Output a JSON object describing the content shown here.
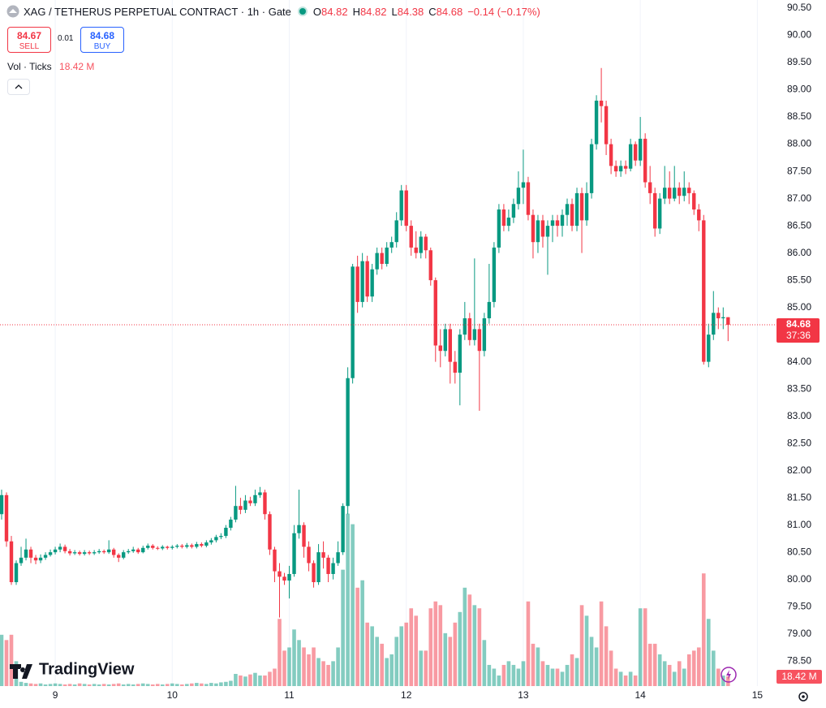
{
  "chart_data": {
    "type": "candlestick",
    "title": "XAG / TETHERUS PERPETUAL CONTRACT · 1h · Gate",
    "ohlc_labels": [
      "O",
      "H",
      "L",
      "C"
    ],
    "change": "−0.14 (−0.17%)",
    "sell_price": 84.67,
    "sell_label": "SELL",
    "spread": 0.01,
    "buy_price": 84.68,
    "buy_label": "BUY",
    "volume_title": "Vol · Ticks",
    "volume_last_label": "18.42 M",
    "countdown": "37:36",
    "brand": "TradingView",
    "up_color": "#089981",
    "down_color": "#f23645",
    "volume_up_color": "rgba(8,153,129,0.5)",
    "volume_down_color": "rgba(242,54,69,0.5)",
    "grid": true,
    "xlim": [
      204.67,
      363.6
    ],
    "xticks": [
      {
        "value": 216,
        "label": "9"
      },
      {
        "value": 240,
        "label": "10"
      },
      {
        "value": 264,
        "label": "11"
      },
      {
        "value": 288,
        "label": "12"
      },
      {
        "value": 312,
        "label": "13"
      },
      {
        "value": 336,
        "label": "14"
      },
      {
        "value": 360,
        "label": "15"
      }
    ],
    "ylim": [
      78.04,
      90.65
    ],
    "yticks": [
      {
        "value": 78.5,
        "label": "78.50"
      },
      {
        "value": 79,
        "label": "79.00"
      },
      {
        "value": 79.5,
        "label": "79.50"
      },
      {
        "value": 80,
        "label": "80.00"
      },
      {
        "value": 80.5,
        "label": "80.50"
      },
      {
        "value": 81,
        "label": "81.00"
      },
      {
        "value": 81.5,
        "label": "81.50"
      },
      {
        "value": 82,
        "label": "82.00"
      },
      {
        "value": 82.5,
        "label": "82.50"
      },
      {
        "value": 83,
        "label": "83.00"
      },
      {
        "value": 83.5,
        "label": "83.50"
      },
      {
        "value": 84,
        "label": "84.00"
      },
      {
        "value": 84.5,
        "label": "84.50"
      },
      {
        "value": 85,
        "label": "85.00"
      },
      {
        "value": 85.5,
        "label": "85.50"
      },
      {
        "value": 86,
        "label": "86.00"
      },
      {
        "value": 86.5,
        "label": "86.50"
      },
      {
        "value": 87,
        "label": "87.00"
      },
      {
        "value": 87.5,
        "label": "87.50"
      },
      {
        "value": 88,
        "label": "88.00"
      },
      {
        "value": 88.5,
        "label": "88.50"
      },
      {
        "value": 89,
        "label": "89.00"
      },
      {
        "value": 89.5,
        "label": "89.50"
      },
      {
        "value": 90,
        "label": "90.00"
      },
      {
        "value": 90.5,
        "label": "90.50"
      }
    ],
    "volume_lim": [
      0,
      660
    ],
    "x": [
      205,
      206,
      207,
      208,
      209,
      210,
      211,
      212,
      213,
      214,
      215,
      216,
      217,
      218,
      219,
      220,
      221,
      222,
      223,
      224,
      225,
      226,
      227,
      228,
      229,
      230,
      231,
      232,
      233,
      234,
      235,
      236,
      237,
      238,
      239,
      240,
      241,
      242,
      243,
      244,
      245,
      246,
      247,
      248,
      249,
      250,
      251,
      252,
      253,
      254,
      255,
      256,
      257,
      258,
      259,
      260,
      261,
      262,
      263,
      264,
      265,
      266,
      267,
      268,
      269,
      270,
      271,
      272,
      273,
      274,
      275,
      276,
      277,
      278,
      279,
      280,
      281,
      282,
      283,
      284,
      285,
      286,
      287,
      288,
      289,
      290,
      291,
      292,
      293,
      294,
      295,
      296,
      297,
      298,
      299,
      300,
      301,
      302,
      303,
      304,
      305,
      306,
      307,
      308,
      309,
      310,
      311,
      312,
      313,
      314,
      315,
      316,
      317,
      318,
      319,
      320,
      321,
      322,
      323,
      324,
      325,
      326,
      327,
      328,
      329,
      330,
      331,
      332,
      333,
      334,
      335,
      336,
      337,
      338,
      339,
      340,
      341,
      342,
      343,
      344,
      345,
      346,
      347,
      348,
      349,
      350,
      351,
      352,
      353,
      354
    ],
    "open": [
      81.2,
      81.55,
      80.7,
      79.95,
      80.3,
      80.4,
      80.55,
      80.4,
      80.35,
      80.4,
      80.45,
      80.5,
      80.55,
      80.6,
      80.52,
      80.48,
      80.5,
      80.47,
      80.5,
      80.48,
      80.5,
      80.52,
      80.5,
      80.55,
      80.45,
      80.4,
      80.5,
      80.52,
      80.55,
      80.5,
      80.58,
      80.62,
      80.58,
      80.57,
      80.6,
      80.58,
      80.6,
      80.62,
      80.6,
      80.63,
      80.6,
      80.65,
      80.62,
      80.68,
      80.72,
      80.78,
      80.8,
      80.95,
      81.1,
      81.35,
      81.28,
      81.45,
      81.4,
      81.55,
      81.6,
      81.2,
      80.55,
      80.15,
      80.05,
      79.98,
      80.1,
      80.85,
      81.0,
      80.6,
      80.3,
      79.95,
      80.5,
      80.4,
      80.1,
      80.3,
      80.5,
      81.35,
      83.7,
      85.75,
      85.1,
      85.85,
      85.2,
      85.7,
      86.0,
      85.8,
      86.1,
      86.2,
      86.6,
      87.15,
      86.5,
      86.1,
      86.0,
      86.3,
      86.05,
      85.5,
      84.3,
      84.2,
      84.6,
      84.0,
      83.8,
      84.5,
      84.8,
      84.4,
      84.6,
      84.2,
      84.8,
      85.1,
      86.1,
      86.8,
      86.5,
      86.65,
      86.9,
      87.2,
      87.3,
      86.7,
      86.2,
      86.6,
      86.3,
      86.5,
      86.6,
      86.5,
      86.7,
      86.9,
      86.5,
      87.1,
      86.6,
      87.1,
      88.0,
      88.8,
      88.7,
      88.0,
      87.6,
      87.5,
      87.6,
      87.55,
      88.0,
      87.7,
      88.1,
      87.3,
      87.1,
      86.45,
      87.0,
      87.2,
      87.0,
      87.2,
      87.05,
      87.2,
      87.1,
      86.8,
      86.6,
      84.0,
      84.5,
      84.9,
      84.8,
      84.82
    ],
    "high": [
      81.65,
      81.6,
      80.8,
      80.35,
      80.6,
      80.75,
      80.6,
      80.45,
      80.46,
      80.5,
      80.55,
      80.6,
      80.66,
      80.64,
      80.56,
      80.54,
      80.53,
      80.54,
      80.53,
      80.54,
      80.56,
      80.55,
      80.72,
      80.58,
      80.48,
      80.54,
      80.56,
      80.6,
      80.58,
      80.62,
      80.66,
      80.65,
      80.61,
      80.63,
      80.62,
      80.63,
      80.65,
      80.65,
      80.67,
      80.66,
      80.69,
      80.68,
      80.72,
      80.76,
      80.82,
      80.85,
      81.0,
      81.15,
      81.72,
      81.5,
      81.55,
      81.52,
      81.65,
      81.7,
      81.65,
      81.25,
      80.6,
      80.3,
      80.12,
      80.25,
      81.0,
      81.65,
      81.05,
      80.7,
      80.35,
      80.65,
      80.7,
      80.45,
      80.4,
      80.7,
      81.4,
      83.9,
      85.8,
      85.95,
      86.0,
      85.95,
      85.8,
      86.1,
      86.1,
      86.2,
      86.3,
      86.75,
      87.25,
      87.25,
      86.6,
      86.4,
      86.4,
      86.35,
      86.1,
      85.55,
      84.6,
      84.7,
      84.7,
      84.2,
      84.6,
      85.1,
      84.9,
      85.9,
      84.7,
      84.9,
      85.8,
      86.2,
      86.9,
      86.9,
      86.8,
      87.0,
      87.5,
      87.9,
      87.4,
      86.8,
      86.7,
      86.7,
      86.6,
      86.7,
      86.7,
      86.8,
      87.0,
      87.0,
      87.2,
      87.2,
      87.3,
      88.1,
      88.9,
      89.4,
      88.8,
      88.1,
      87.7,
      87.7,
      87.7,
      88.1,
      88.05,
      88.5,
      88.2,
      87.6,
      87.2,
      87.1,
      87.6,
      87.5,
      87.6,
      87.3,
      87.5,
      87.3,
      87.15,
      86.9,
      86.7,
      84.7,
      85.3,
      85.0,
      85.0,
      84.82
    ],
    "low": [
      81.1,
      80.6,
      79.9,
      79.9,
      80.25,
      80.35,
      80.3,
      80.28,
      80.3,
      80.36,
      80.42,
      80.46,
      80.5,
      80.48,
      80.44,
      80.45,
      80.44,
      80.44,
      80.45,
      80.45,
      80.47,
      80.47,
      80.47,
      80.4,
      80.32,
      80.37,
      80.47,
      80.49,
      80.47,
      80.48,
      80.55,
      80.55,
      80.54,
      80.54,
      80.55,
      80.55,
      80.57,
      80.57,
      80.57,
      80.57,
      80.57,
      80.59,
      80.59,
      80.64,
      80.68,
      80.74,
      80.76,
      80.9,
      81.05,
      81.2,
      81.22,
      81.35,
      81.35,
      81.5,
      81.1,
      80.45,
      79.95,
      79.3,
      79.9,
      79.65,
      80.05,
      80.75,
      80.4,
      80.15,
      79.85,
      79.9,
      80.2,
      79.95,
      80.0,
      80.25,
      80.45,
      81.2,
      83.6,
      84.9,
      85.0,
      85.1,
      85.1,
      85.6,
      85.7,
      85.75,
      86.0,
      86.1,
      86.5,
      86.4,
      85.95,
      85.9,
      85.9,
      85.9,
      85.4,
      84.0,
      83.9,
      84.1,
      83.6,
      83.6,
      83.2,
      84.4,
      84.3,
      84.3,
      83.1,
      84.1,
      84.7,
      85.0,
      86.0,
      86.4,
      86.4,
      86.55,
      86.8,
      86.9,
      86.6,
      85.9,
      86.0,
      86.1,
      85.6,
      86.2,
      86.3,
      86.3,
      86.5,
      86.4,
      86.4,
      86.0,
      86.5,
      87.0,
      87.9,
      88.4,
      87.8,
      87.45,
      87.4,
      87.4,
      87.45,
      87.5,
      87.6,
      87.6,
      87.2,
      86.9,
      86.3,
      86.35,
      86.9,
      86.9,
      86.95,
      86.9,
      86.95,
      86.9,
      86.7,
      86.4,
      83.95,
      83.9,
      84.4,
      84.6,
      84.6,
      84.38
    ],
    "close": [
      81.55,
      80.7,
      79.95,
      80.3,
      80.4,
      80.55,
      80.4,
      80.35,
      80.4,
      80.45,
      80.5,
      80.55,
      80.6,
      80.52,
      80.48,
      80.5,
      80.47,
      80.5,
      80.48,
      80.5,
      80.52,
      80.5,
      80.55,
      80.45,
      80.4,
      80.5,
      80.52,
      80.55,
      80.5,
      80.58,
      80.62,
      80.58,
      80.57,
      80.6,
      80.58,
      80.6,
      80.62,
      80.6,
      80.63,
      80.6,
      80.65,
      80.62,
      80.68,
      80.72,
      80.78,
      80.8,
      80.95,
      81.1,
      81.35,
      81.28,
      81.45,
      81.4,
      81.55,
      81.6,
      81.2,
      80.55,
      80.15,
      80.05,
      79.98,
      80.1,
      80.85,
      81.0,
      80.6,
      80.3,
      79.95,
      80.5,
      80.4,
      80.1,
      80.3,
      80.5,
      81.35,
      83.7,
      85.75,
      85.1,
      85.85,
      85.2,
      85.7,
      86.0,
      85.8,
      86.1,
      86.2,
      86.6,
      87.15,
      86.5,
      86.1,
      86.0,
      86.3,
      86.05,
      85.5,
      84.3,
      84.2,
      84.6,
      84.0,
      83.8,
      84.5,
      84.8,
      84.4,
      84.6,
      84.2,
      84.8,
      85.1,
      86.1,
      86.8,
      86.5,
      86.65,
      86.9,
      87.2,
      87.3,
      86.7,
      86.2,
      86.6,
      86.3,
      86.5,
      86.6,
      86.5,
      86.7,
      86.9,
      86.5,
      87.1,
      86.6,
      87.1,
      88.0,
      88.8,
      88.7,
      88.0,
      87.6,
      87.5,
      87.6,
      87.55,
      88.0,
      87.7,
      88.1,
      87.3,
      87.1,
      86.45,
      87.0,
      87.2,
      87.0,
      87.2,
      87.05,
      87.2,
      87.1,
      86.8,
      86.6,
      84.0,
      84.5,
      84.9,
      84.8,
      84.82,
      84.68
    ],
    "volume": [
      97,
      87,
      97,
      47,
      8,
      6,
      5,
      4,
      5,
      3,
      4,
      5,
      4,
      3,
      4,
      3,
      5,
      4,
      3,
      4,
      3,
      4,
      3,
      4,
      5,
      3,
      4,
      3,
      4,
      5,
      4,
      3,
      4,
      3,
      4,
      5,
      4,
      3,
      4,
      5,
      6,
      5,
      4,
      6,
      5,
      7,
      8,
      10,
      23,
      20,
      18,
      22,
      25,
      20,
      20,
      27,
      33,
      127,
      67,
      73,
      107,
      87,
      73,
      60,
      73,
      53,
      47,
      40,
      47,
      73,
      220,
      326,
      306,
      186,
      200,
      120,
      113,
      93,
      80,
      53,
      60,
      93,
      113,
      120,
      147,
      133,
      67,
      67,
      147,
      160,
      153,
      100,
      93,
      120,
      140,
      186,
      173,
      153,
      147,
      87,
      40,
      33,
      20,
      40,
      47,
      40,
      33,
      47,
      160,
      80,
      73,
      47,
      40,
      33,
      33,
      27,
      40,
      60,
      53,
      153,
      133,
      93,
      73,
      160,
      113,
      67,
      33,
      27,
      20,
      27,
      20,
      147,
      147,
      80,
      80,
      60,
      47,
      40,
      27,
      47,
      33,
      60,
      67,
      73,
      213,
      127,
      67,
      33,
      20,
      18.42
    ]
  }
}
